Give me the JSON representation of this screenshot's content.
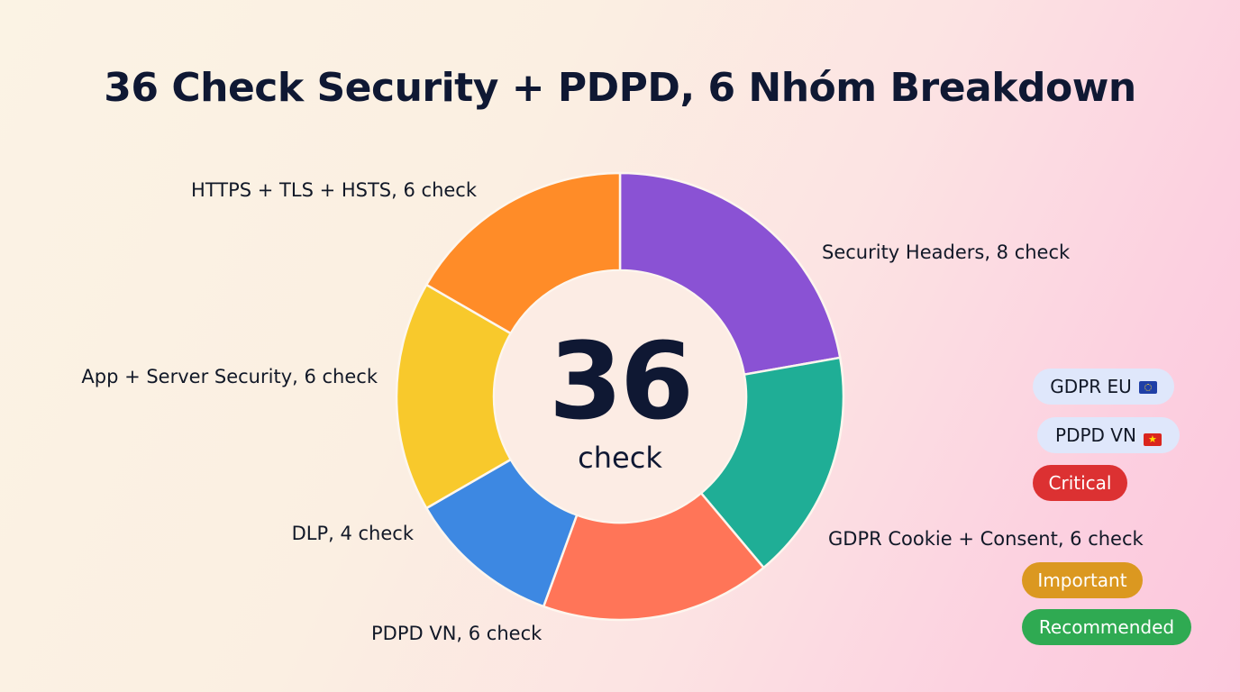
{
  "title": "36 Check Security + PDPD, 6 Nhóm Breakdown",
  "center": {
    "number": "36",
    "unit": "check"
  },
  "chart_data": {
    "type": "pie",
    "total": 36,
    "slices": [
      {
        "label": "Security Headers, 8 check",
        "value": 8,
        "color": "#8a52d4"
      },
      {
        "label": "GDPR Cookie + Consent, 6 check",
        "value": 6,
        "color": "#1fae96"
      },
      {
        "label": "PDPD VN, 6 check",
        "value": 6,
        "color": "#ff7558"
      },
      {
        "label": "DLP, 4 check",
        "value": 4,
        "color": "#3d88e2"
      },
      {
        "label": "App + Server Security, 6 check",
        "value": 6,
        "color": "#f8c92c"
      },
      {
        "label": "HTTPS + TLS + HSTS, 6 check",
        "value": 6,
        "color": "#ff8c28"
      }
    ]
  },
  "legend_tags": [
    {
      "label": "GDPR EU",
      "icon": "eu-flag-icon",
      "background": "#dfe7fb"
    },
    {
      "label": "PDPD VN",
      "icon": "vn-flag-icon",
      "background": "#dfe7fb"
    },
    {
      "label": "Critical",
      "icon": "",
      "background": "#dc3132"
    },
    {
      "label": "Important",
      "icon": "",
      "background": "#db9820"
    },
    {
      "label": "Recommended",
      "icon": "",
      "background": "#2faa52"
    }
  ]
}
